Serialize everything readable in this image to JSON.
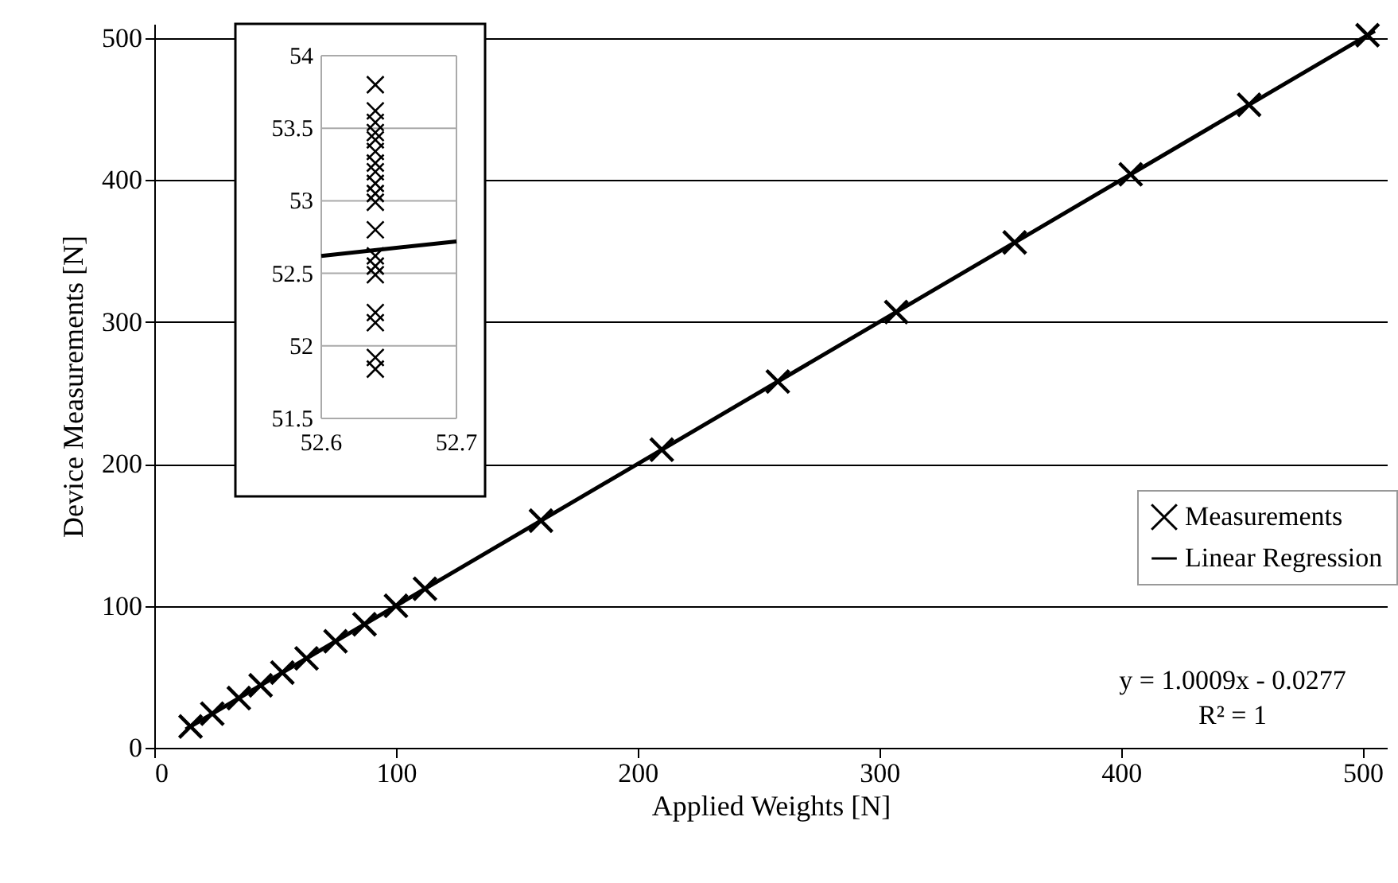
{
  "chart_data": [
    {
      "type": "scatter",
      "xlabel": "Applied Weights [N]",
      "ylabel": "Device Measurements [N]",
      "xlim": [
        0,
        510
      ],
      "ylim": [
        0,
        510
      ],
      "xticks": [
        0,
        100,
        200,
        300,
        400,
        500
      ],
      "yticks": [
        0,
        100,
        200,
        300,
        400,
        500
      ],
      "grid": "y",
      "legend": "right",
      "marker": "cross",
      "annotations": [
        "y = 1.0009x - 0.0277",
        "R² = 1"
      ],
      "series": [
        {
          "name": "Measurements",
          "color": "#000000",
          "x": [
            15,
            24,
            35,
            44,
            53,
            63,
            75,
            87,
            100,
            112,
            160,
            210,
            258,
            307,
            356,
            404,
            453,
            502
          ],
          "values": [
            15,
            24,
            35,
            44,
            53,
            63,
            75,
            87,
            100,
            112,
            160,
            210,
            258,
            307,
            356,
            404,
            453,
            502
          ]
        },
        {
          "name": "Linear Regression",
          "type": "line",
          "marker": "none",
          "color": "#000000",
          "x": [
            13,
            505
          ],
          "values": [
            13,
            505
          ]
        }
      ]
    },
    {
      "type": "scatter",
      "xlim": [
        52.6,
        52.7
      ],
      "ylim": [
        51.5,
        54
      ],
      "xticks": [
        52.6,
        52.7
      ],
      "yticks": [
        51.5,
        52,
        52.5,
        53,
        53.5,
        54
      ],
      "grid": true,
      "marker": "cross",
      "series": [
        {
          "color": "#000000",
          "x": [
            52.64,
            52.64,
            52.64,
            52.64,
            52.64,
            52.64,
            52.64,
            52.64,
            52.64,
            52.64,
            52.64,
            52.64,
            52.64,
            52.64,
            52.64,
            52.64,
            52.64,
            52.64,
            52.64
          ],
          "values": [
            53.8,
            53.62,
            53.54,
            53.47,
            53.42,
            53.34,
            53.26,
            53.2,
            53.12,
            53.05,
            52.99,
            52.8,
            52.62,
            52.55,
            52.49,
            52.23,
            52.16,
            51.92,
            51.84
          ]
        },
        {
          "type": "line",
          "marker": "none",
          "color": "#000000",
          "x": [
            52.6,
            52.7
          ],
          "values": [
            52.62,
            52.72
          ]
        }
      ]
    }
  ]
}
